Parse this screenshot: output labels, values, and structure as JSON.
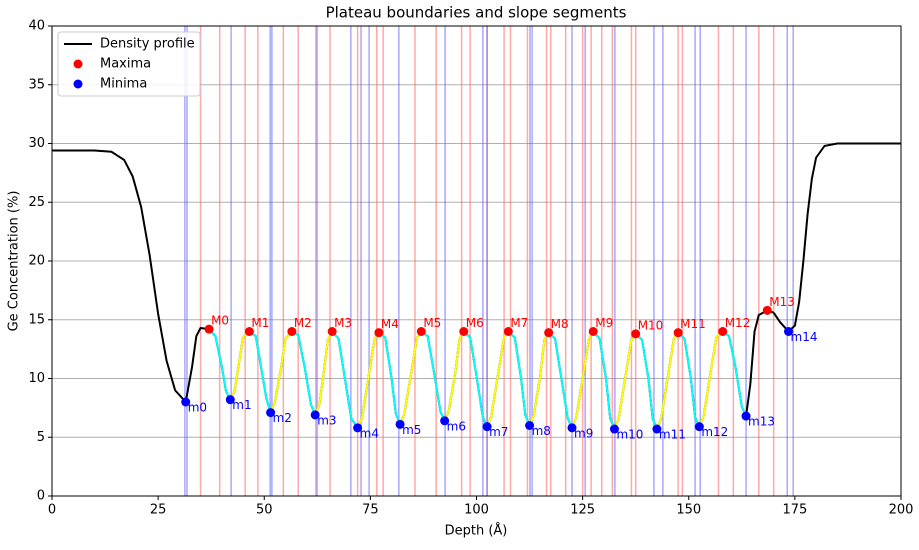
{
  "chart_data": {
    "type": "line",
    "title": "Plateau boundaries and slope segments",
    "x_label": "Depth (Å)",
    "y_label": "Ge Concentration (%)",
    "xlim": [
      0,
      200
    ],
    "xticks": [
      0,
      25,
      50,
      75,
      100,
      125,
      150,
      175,
      200
    ],
    "ylim": [
      0,
      40
    ],
    "yticks": [
      0,
      5,
      10,
      15,
      20,
      25,
      30,
      35,
      40
    ],
    "grid": true,
    "legend": "upper left",
    "slope_colors": {
      "rising": "#ffff00",
      "falling": "#00ffff"
    },
    "boundaries": [
      {
        "color": "#ff6060",
        "x": [
          35,
          39.5,
          45.5,
          48.5,
          54.5,
          58,
          62.5,
          65.5,
          72,
          76.5,
          78,
          85.5,
          90.5,
          96.5,
          98.5,
          102.5,
          106.5,
          108,
          112,
          116.5,
          117.5,
          121,
          125,
          127,
          129.5,
          132,
          136.5,
          137.5,
          147.5,
          148.5,
          157,
          160.5,
          166.5,
          170
        ]
      },
      {
        "color": "#6060ff",
        "x": [
          31.3,
          31.8,
          42.2,
          51.4,
          51.8,
          62.2,
          70.4,
          72.8,
          74.7,
          81.7,
          92.6,
          101.5,
          102.5,
          112.6,
          113.1,
          122.5,
          125.6,
          132.6,
          141.8,
          143.9,
          151.5,
          152.7,
          163.5,
          173.2,
          174.6
        ]
      }
    ],
    "series": [
      {
        "name": "Density profile",
        "color": "#000000",
        "x": [
          0,
          10,
          14,
          17,
          19,
          21,
          23,
          25,
          27,
          29,
          31.5,
          33,
          34,
          35,
          37,
          38.5,
          40,
          41,
          42,
          43,
          44,
          45,
          46.5,
          48,
          49,
          50.5,
          51.5,
          52.5,
          54,
          55,
          56.5,
          58,
          59.5,
          61,
          62,
          63,
          64,
          65,
          66,
          67.5,
          69,
          70.5,
          72,
          73,
          74.5,
          76,
          77,
          78.5,
          80,
          81,
          82,
          83,
          84.5,
          86,
          87,
          88.5,
          90,
          91.5,
          92.5,
          93.5,
          95,
          96,
          97,
          98.5,
          100,
          101.5,
          102.5,
          103.5,
          105,
          106.5,
          107.5,
          109,
          110.5,
          111.5,
          112.5,
          113.5,
          115,
          116,
          117,
          118.5,
          120,
          121.5,
          122.5,
          123.5,
          125,
          126.5,
          127.5,
          129,
          130.5,
          131.5,
          132.5,
          133.5,
          135,
          136.5,
          137.5,
          139,
          140.5,
          141.5,
          142.5,
          143.5,
          145,
          146.5,
          147.5,
          149,
          150.5,
          151.5,
          152.5,
          153.5,
          155,
          156.5,
          158,
          159.5,
          161,
          162.5,
          163.5,
          164.5,
          165.5,
          166.5,
          168.5,
          170,
          171.5,
          173.5,
          175,
          176,
          177,
          178,
          179,
          180,
          182,
          185,
          200
        ],
        "values": [
          29.4,
          29.4,
          29.3,
          28.6,
          27.2,
          24.6,
          20.5,
          15.5,
          11.5,
          9.0,
          8.0,
          11.0,
          13.6,
          14.3,
          14.2,
          13.6,
          11.0,
          8.9,
          8.2,
          8.9,
          11.2,
          13.5,
          14.0,
          13.6,
          11.5,
          8.3,
          7.1,
          8.0,
          11.0,
          13.4,
          14.0,
          13.7,
          11.0,
          7.8,
          6.9,
          7.8,
          10.5,
          13.3,
          14.0,
          13.4,
          10.0,
          6.6,
          5.8,
          6.6,
          10.0,
          13.4,
          13.9,
          13.5,
          10.0,
          7.0,
          6.1,
          7.0,
          10.2,
          13.5,
          14.0,
          13.6,
          10.5,
          7.2,
          6.4,
          7.3,
          10.5,
          13.4,
          14.0,
          13.5,
          10.2,
          6.7,
          5.9,
          6.8,
          10.2,
          13.5,
          14.0,
          13.5,
          10.0,
          6.9,
          6.0,
          6.9,
          10.2,
          13.3,
          13.9,
          13.4,
          10.0,
          6.6,
          5.8,
          6.7,
          10.0,
          13.4,
          14.0,
          13.4,
          10.0,
          6.6,
          5.7,
          6.6,
          10.0,
          13.3,
          13.8,
          13.3,
          10.0,
          6.6,
          5.7,
          6.6,
          10.0,
          13.4,
          13.9,
          13.4,
          10.0,
          6.7,
          5.9,
          6.8,
          10.2,
          13.5,
          14.0,
          13.6,
          11.0,
          7.6,
          6.8,
          9.5,
          14.0,
          15.4,
          15.8,
          15.6,
          14.8,
          14.0,
          14.5,
          16.5,
          20.0,
          24.0,
          27.0,
          28.8,
          29.8,
          30.0,
          30.0
        ]
      },
      {
        "name": "Maxima",
        "color": "#ff0000",
        "x": [
          37,
          46.5,
          56.5,
          66,
          77,
          87,
          97,
          107.5,
          117,
          127.5,
          137.5,
          147.5,
          158,
          168.5
        ],
        "values": [
          14.2,
          14.0,
          14.0,
          14.0,
          13.9,
          14.0,
          14.0,
          14.0,
          13.9,
          14.0,
          13.8,
          13.9,
          14.0,
          15.8
        ],
        "labels": [
          "M0",
          "M1",
          "M2",
          "M3",
          "M4",
          "M5",
          "M6",
          "M7",
          "M8",
          "M9",
          "M10",
          "M11",
          "M12",
          "M13"
        ]
      },
      {
        "name": "Minima",
        "color": "#0000ff",
        "x": [
          31.5,
          42,
          51.5,
          62,
          72,
          82,
          92.5,
          102.5,
          112.5,
          122.5,
          132.5,
          142.5,
          152.5,
          163.5,
          173.5
        ],
        "values": [
          8.0,
          8.2,
          7.1,
          6.9,
          5.8,
          6.1,
          6.4,
          5.9,
          6.0,
          5.8,
          5.7,
          5.7,
          5.9,
          6.8,
          14.0
        ],
        "labels": [
          "m0",
          "m1",
          "m2",
          "m3",
          "m4",
          "m5",
          "m6",
          "m7",
          "m8",
          "m9",
          "m10",
          "m11",
          "m12",
          "m13",
          "m14"
        ]
      }
    ]
  }
}
